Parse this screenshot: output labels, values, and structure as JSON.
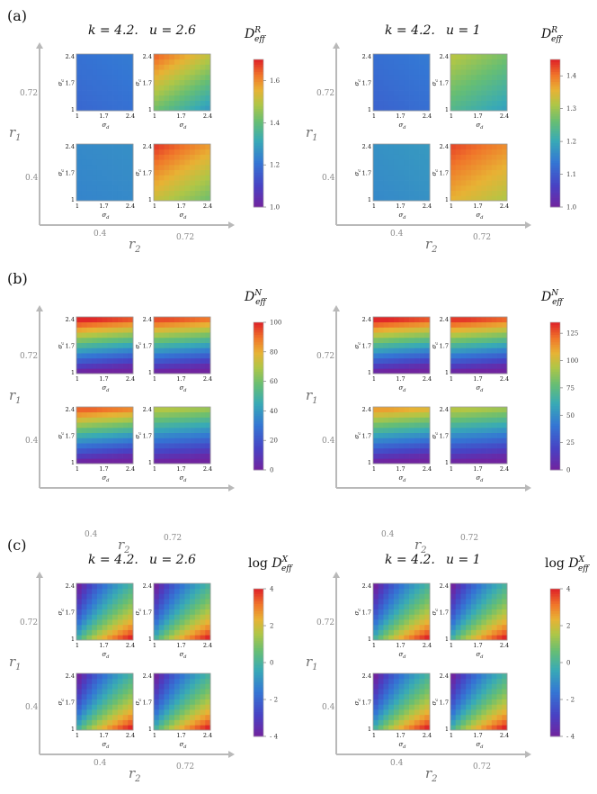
{
  "chart_data": {
    "type": "heatmap",
    "grid_ticks": [
      "1",
      "1.7",
      "2.4"
    ],
    "x_axis_label": "σd",
    "y_axis_label": "σc",
    "outer_x_label": "r2",
    "outer_y_label": "r1",
    "outer_x_ticks": [
      "0.4",
      "0.72"
    ],
    "outer_y_ticks": [
      "0.72",
      "0.4"
    ],
    "panels": [
      {
        "label": "(a)",
        "quantity": "D_eff^R",
        "subfigures": [
          {
            "params": {
              "k": "k = 4.2.",
              "u": "u = 2.6"
            },
            "colorbar": {
              "title": "D",
              "sup": "R",
              "sub": "eff",
              "min": 1.0,
              "max": 1.7,
              "ticks": [
                "1.6",
                "1.4",
                "1.2",
                "1.0"
              ]
            },
            "maps": {
              "top_left": {
                "r1": 0.72,
                "r2": 0.4,
                "pattern": "uniform",
                "base": 1.18,
                "range": 0.04
              },
              "top_right": {
                "r1": 0.72,
                "r2": 0.72,
                "pattern": "corner",
                "base": 1.42,
                "range": 0.22
              },
              "bottom_left": {
                "r1": 0.4,
                "r2": 0.4,
                "pattern": "uniform",
                "base": 1.24,
                "range": 0.02
              },
              "bottom_right": {
                "r1": 0.4,
                "r2": 0.72,
                "pattern": "corner",
                "base": 1.52,
                "range": 0.16
              }
            }
          },
          {
            "params": {
              "k": "k = 4.2.",
              "u": "u = 1"
            },
            "colorbar": {
              "title": "D",
              "sup": "R",
              "sub": "eff",
              "min": 1.0,
              "max": 1.45,
              "ticks": [
                "1.4",
                "1.3",
                "1.2",
                "1.1",
                "1.0"
              ]
            },
            "maps": {
              "top_left": {
                "r1": 0.72,
                "r2": 0.4,
                "pattern": "uniform",
                "base": 1.11,
                "range": 0.03
              },
              "top_right": {
                "r1": 0.72,
                "r2": 0.72,
                "pattern": "corner",
                "base": 1.24,
                "range": 0.08
              },
              "bottom_left": {
                "r1": 0.4,
                "r2": 0.4,
                "pattern": "uniform",
                "base": 1.16,
                "range": 0.02
              },
              "bottom_right": {
                "r1": 0.4,
                "r2": 0.72,
                "pattern": "corner",
                "base": 1.36,
                "range": 0.07
              }
            }
          }
        ]
      },
      {
        "label": "(b)",
        "quantity": "D_eff^N",
        "subfigures": [
          {
            "params": null,
            "colorbar": {
              "title": "D",
              "sup": "N",
              "sub": "eff",
              "min": 0,
              "max": 100,
              "ticks": [
                "100",
                "80",
                "60",
                "40",
                "20",
                "0"
              ]
            },
            "maps": {
              "top_left": {
                "r1": 0.72,
                "r2": 0.4,
                "pattern": "vertical",
                "base": 0,
                "range": 100
              },
              "top_right": {
                "r1": 0.72,
                "r2": 0.72,
                "pattern": "vertical",
                "base": 0,
                "range": 95
              },
              "bottom_left": {
                "r1": 0.4,
                "r2": 0.4,
                "pattern": "vertical",
                "base": 0,
                "range": 92
              },
              "bottom_right": {
                "r1": 0.4,
                "r2": 0.72,
                "pattern": "vertical",
                "base": 0,
                "range": 70
              }
            }
          },
          {
            "params": null,
            "colorbar": {
              "title": "D",
              "sup": "N",
              "sub": "eff",
              "min": 0,
              "max": 135,
              "ticks": [
                "125",
                "100",
                "75",
                "50",
                "25",
                "0"
              ]
            },
            "maps": {
              "top_left": {
                "r1": 0.72,
                "r2": 0.4,
                "pattern": "vertical",
                "base": 0,
                "range": 135
              },
              "top_right": {
                "r1": 0.72,
                "r2": 0.72,
                "pattern": "vertical",
                "base": 0,
                "range": 132
              },
              "bottom_left": {
                "r1": 0.4,
                "r2": 0.4,
                "pattern": "vertical",
                "base": 0,
                "range": 112
              },
              "bottom_right": {
                "r1": 0.4,
                "r2": 0.72,
                "pattern": "vertical",
                "base": 0,
                "range": 95
              }
            }
          }
        ]
      },
      {
        "label": "(c)",
        "quantity": "log D_eff^X",
        "subfigures": [
          {
            "params": {
              "k": "k = 4.2.",
              "u": "u = 2.6"
            },
            "colorbar": {
              "title": "log D",
              "sup": "X",
              "sub": "eff",
              "min": -4,
              "max": 4,
              "ticks": [
                "4",
                "2",
                "0",
                "- 2",
                "- 4"
              ]
            },
            "maps": {
              "top_left": {
                "r1": 0.72,
                "r2": 0.4,
                "pattern": "diagonal",
                "base": -4,
                "range": 8
              },
              "top_right": {
                "r1": 0.72,
                "r2": 0.72,
                "pattern": "diagonal",
                "base": -4,
                "range": 8
              },
              "bottom_left": {
                "r1": 0.4,
                "r2": 0.4,
                "pattern": "diagonal",
                "base": -4,
                "range": 8
              },
              "bottom_right": {
                "r1": 0.4,
                "r2": 0.72,
                "pattern": "diagonal",
                "base": -4,
                "range": 8
              }
            }
          },
          {
            "params": {
              "k": "k = 4.2.",
              "u": "u = 1"
            },
            "colorbar": {
              "title": "log D",
              "sup": "X",
              "sub": "eff",
              "min": -4,
              "max": 4,
              "ticks": [
                "4",
                "2",
                "0",
                "- 2",
                "- 4"
              ]
            },
            "maps": {
              "top_left": {
                "r1": 0.72,
                "r2": 0.4,
                "pattern": "diagonal",
                "base": -4,
                "range": 8
              },
              "top_right": {
                "r1": 0.72,
                "r2": 0.72,
                "pattern": "diagonal",
                "base": -4,
                "range": 8
              },
              "bottom_left": {
                "r1": 0.4,
                "r2": 0.4,
                "pattern": "diagonal",
                "base": -4,
                "range": 8
              },
              "bottom_right": {
                "r1": 0.4,
                "r2": 0.72,
                "pattern": "diagonal",
                "base": -4,
                "range": 8
              }
            }
          }
        ]
      }
    ]
  }
}
